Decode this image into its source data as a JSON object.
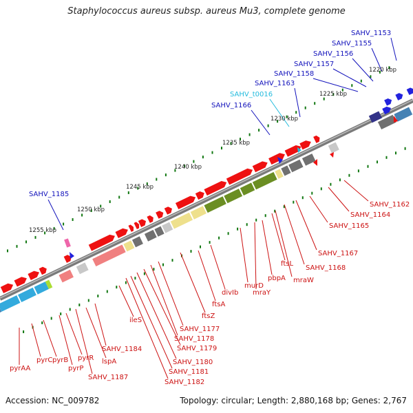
{
  "title": "Staphylococcus aureus subsp. aureus Mu3, complete genome",
  "footer": {
    "accession": "Accession: NC_009782",
    "summary": "Topology: circular; Length: 2,880,168 bp; Genes: 2,767"
  },
  "colors": {
    "label_red": "#cc1111",
    "label_blue": "#1111bb",
    "label_cyan": "#22bbdd",
    "backbone": "#808080",
    "gene_red": "#ee1111",
    "gene_blue": "#2222dd",
    "gene_pink": "#ee66aa",
    "gene_olive": "#6b8e23",
    "gene_khaki": "#eee08c",
    "gene_grey": "#707070",
    "gene_lightgrey": "#c8c8c8",
    "gene_salmon": "#f08080",
    "gene_steel": "#4682b4",
    "gene_sky": "#33aadd",
    "gene_lime": "#aadd33",
    "gene_navy": "#333388",
    "tick": "#117711"
  },
  "scale_labels": [
    "1220 kbp",
    "1225 kbp",
    "1230 kbp",
    "1235 kbp",
    "1240 kbp",
    "1245 kbp",
    "1250 kbp",
    "1255 kbp"
  ],
  "upper_labels": [
    {
      "text": "SAHV_1153",
      "color": "blue"
    },
    {
      "text": "SAHV_1155",
      "color": "blue"
    },
    {
      "text": "SAHV_1156",
      "color": "blue"
    },
    {
      "text": "SAHV_1157",
      "color": "blue"
    },
    {
      "text": "SAHV_1158",
      "color": "blue"
    },
    {
      "text": "SAHV_1163",
      "color": "blue"
    },
    {
      "text": "SAHV_t0016",
      "color": "cyan"
    },
    {
      "text": "SAHV_1166",
      "color": "blue"
    },
    {
      "text": "SAHV_1185",
      "color": "blue"
    }
  ],
  "lower_labels": [
    "SAHV_1162",
    "SAHV_1164",
    "SAHV_1165",
    "SAHV_1167",
    "SAHV_1168",
    "mraW",
    "ftsL",
    "pbpA",
    "murD",
    "mraY",
    "divIb",
    "ftsA",
    "ftsZ",
    "SAHV_1177",
    "SAHV_1178",
    "SAHV_1179",
    "SAHV_1180",
    "SAHV_1181",
    "SAHV_1182",
    "ileS",
    "SAHV_1184",
    "lspA",
    "SAHV_1187",
    "pyrR",
    "pyrP",
    "pyrB",
    "pyrC",
    "pyrAA"
  ]
}
